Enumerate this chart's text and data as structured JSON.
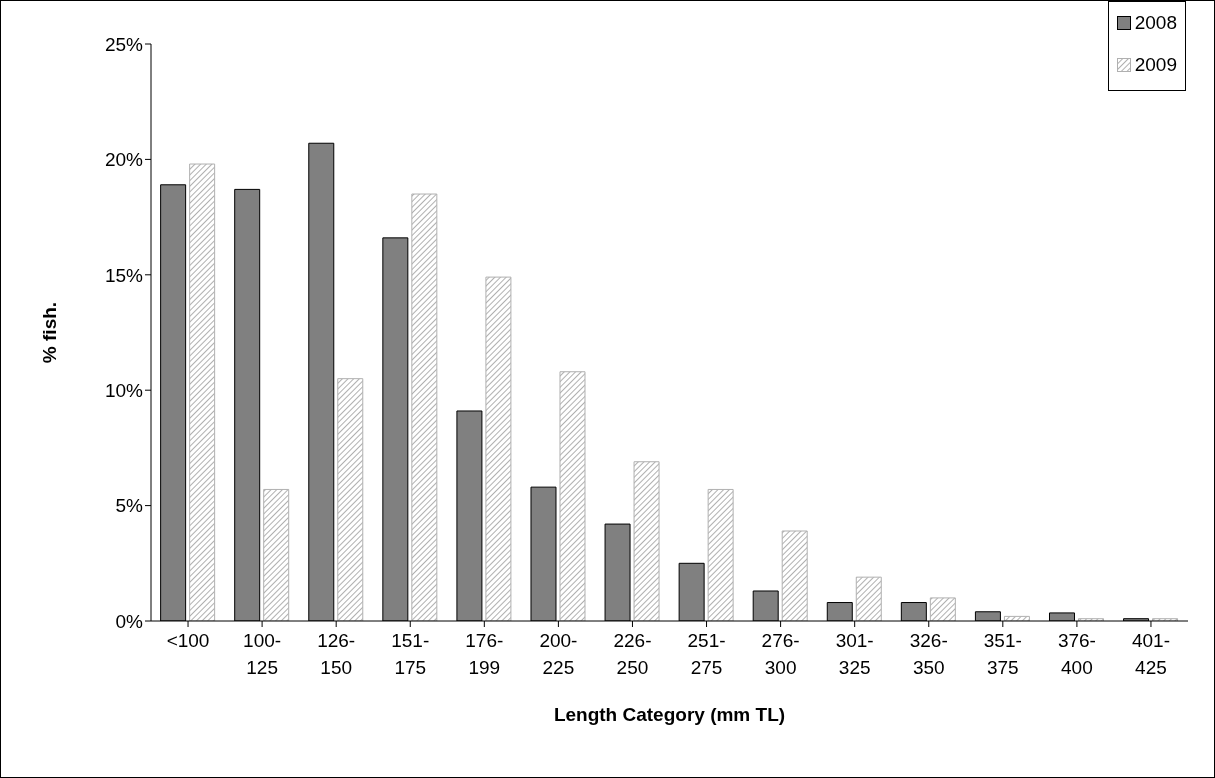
{
  "chart_data": {
    "type": "bar",
    "xlabel": "Length Category (mm TL)",
    "ylabel": "% fish.",
    "categories": [
      "<100",
      "100-125",
      "126-150",
      "151-175",
      "176-199",
      "200-225",
      "226-250",
      "251-275",
      "276-300",
      "301-325",
      "326-350",
      "351-375",
      "376-400",
      "401-425"
    ],
    "series": [
      {
        "name": "2008",
        "color": "#808080",
        "values": [
          18.9,
          18.7,
          20.7,
          16.6,
          9.1,
          5.8,
          4.2,
          2.5,
          1.3,
          0.8,
          0.8,
          0.4,
          0.35,
          0.1
        ]
      },
      {
        "name": "2009",
        "color": "#b0b0b0",
        "values": [
          19.8,
          5.7,
          10.5,
          18.5,
          14.9,
          10.8,
          6.9,
          5.7,
          3.9,
          1.9,
          1.0,
          0.2,
          0.1,
          0.1
        ]
      }
    ],
    "ylim": [
      0,
      25
    ],
    "yticks": [
      {
        "value": 0,
        "label": "0%"
      },
      {
        "value": 5,
        "label": "5%"
      },
      {
        "value": 10,
        "label": "10%"
      },
      {
        "value": 15,
        "label": "15%"
      },
      {
        "value": 20,
        "label": "20%"
      },
      {
        "value": 25,
        "label": "25%"
      }
    ],
    "grid": false,
    "legend": "top right"
  }
}
